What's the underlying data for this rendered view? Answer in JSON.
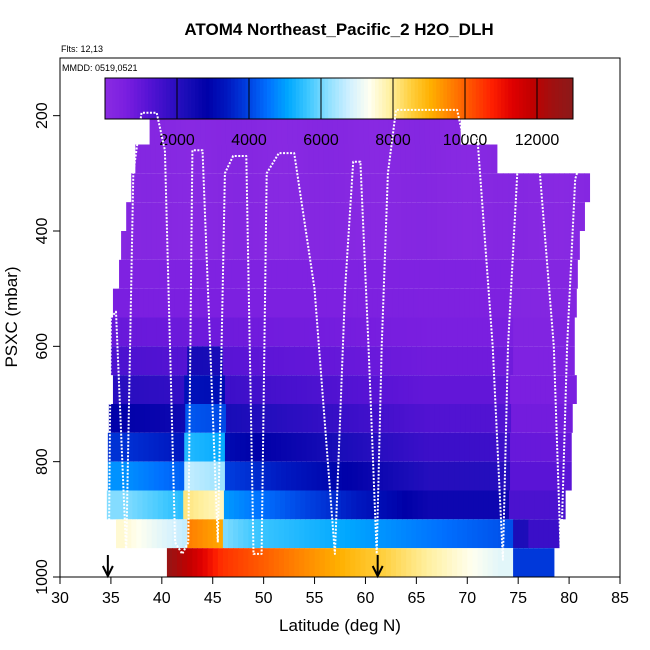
{
  "chart_data": {
    "type": "heatmap",
    "title": "ATOM4 Northeast_Pacific_2 H2O_DLH",
    "subtitle_lines": [
      "Flts: 12,13",
      "MMDD: 0519,0521"
    ],
    "xlabel": "Latitude (deg N)",
    "ylabel": "PSXC (mbar)",
    "xlim": [
      30,
      85
    ],
    "ylim": [
      1000,
      100
    ],
    "x_ticks": [
      30,
      35,
      40,
      45,
      50,
      55,
      60,
      65,
      70,
      75,
      80,
      85
    ],
    "y_ticks": [
      200,
      400,
      600,
      800,
      1000
    ],
    "colorbar": {
      "range": [
        0,
        13000
      ],
      "ticks": [
        2000,
        4000,
        6000,
        8000,
        10000,
        12000
      ],
      "colors": [
        "#8a2be2",
        "#7b1fe0",
        "#5b14d6",
        "#3a0fc8",
        "#1a0db8",
        "#0000a8",
        "#0018c0",
        "#0040e0",
        "#0070ff",
        "#00a8ff",
        "#40c8ff",
        "#90e0ff",
        "#d0f0ff",
        "#fffff0",
        "#fff0a0",
        "#ffd040",
        "#ffb000",
        "#ff8000",
        "#ff5000",
        "#ff2000",
        "#e00000",
        "#c00000",
        "#a01010",
        "#8b1a1a"
      ]
    },
    "level_edges": [
      150,
      250,
      300,
      350,
      400,
      450,
      500,
      550,
      600,
      650,
      700,
      750,
      800,
      850,
      900,
      950,
      1000
    ],
    "profile_path": [
      [
        34.8,
        950
      ],
      [
        35.0,
        550
      ],
      [
        35.5,
        540
      ],
      [
        36.5,
        960
      ],
      [
        37.2,
        300
      ],
      [
        38.0,
        195
      ],
      [
        39.5,
        195
      ],
      [
        40.3,
        260
      ],
      [
        41.3,
        940
      ],
      [
        42.0,
        960
      ],
      [
        42.6,
        940
      ],
      [
        43.0,
        260
      ],
      [
        44.0,
        260
      ],
      [
        45.5,
        940
      ],
      [
        46.2,
        300
      ],
      [
        47.0,
        270
      ],
      [
        48.3,
        270
      ],
      [
        49.0,
        960
      ],
      [
        49.8,
        960
      ],
      [
        50.3,
        300
      ],
      [
        51.5,
        265
      ],
      [
        53.0,
        265
      ],
      [
        55.0,
        500
      ],
      [
        57.0,
        960
      ],
      [
        58.0,
        500
      ],
      [
        58.8,
        280
      ],
      [
        59.5,
        280
      ],
      [
        60.3,
        600
      ],
      [
        61.1,
        960
      ],
      [
        61.6,
        600
      ],
      [
        62.2,
        300
      ],
      [
        63.0,
        190
      ],
      [
        69.0,
        190
      ],
      [
        69.5,
        230
      ],
      [
        71.0,
        240
      ],
      [
        72.5,
        600
      ],
      [
        73.5,
        970
      ],
      [
        74.0,
        600
      ],
      [
        75.0,
        270
      ],
      [
        77.0,
        270
      ],
      [
        78.5,
        600
      ],
      [
        79.2,
        970
      ],
      [
        79.8,
        600
      ],
      [
        80.6,
        310
      ],
      [
        81.3,
        270
      ],
      [
        81.6,
        285
      ]
    ],
    "flight_start_markers": [
      34.7,
      61.2
    ]
  }
}
